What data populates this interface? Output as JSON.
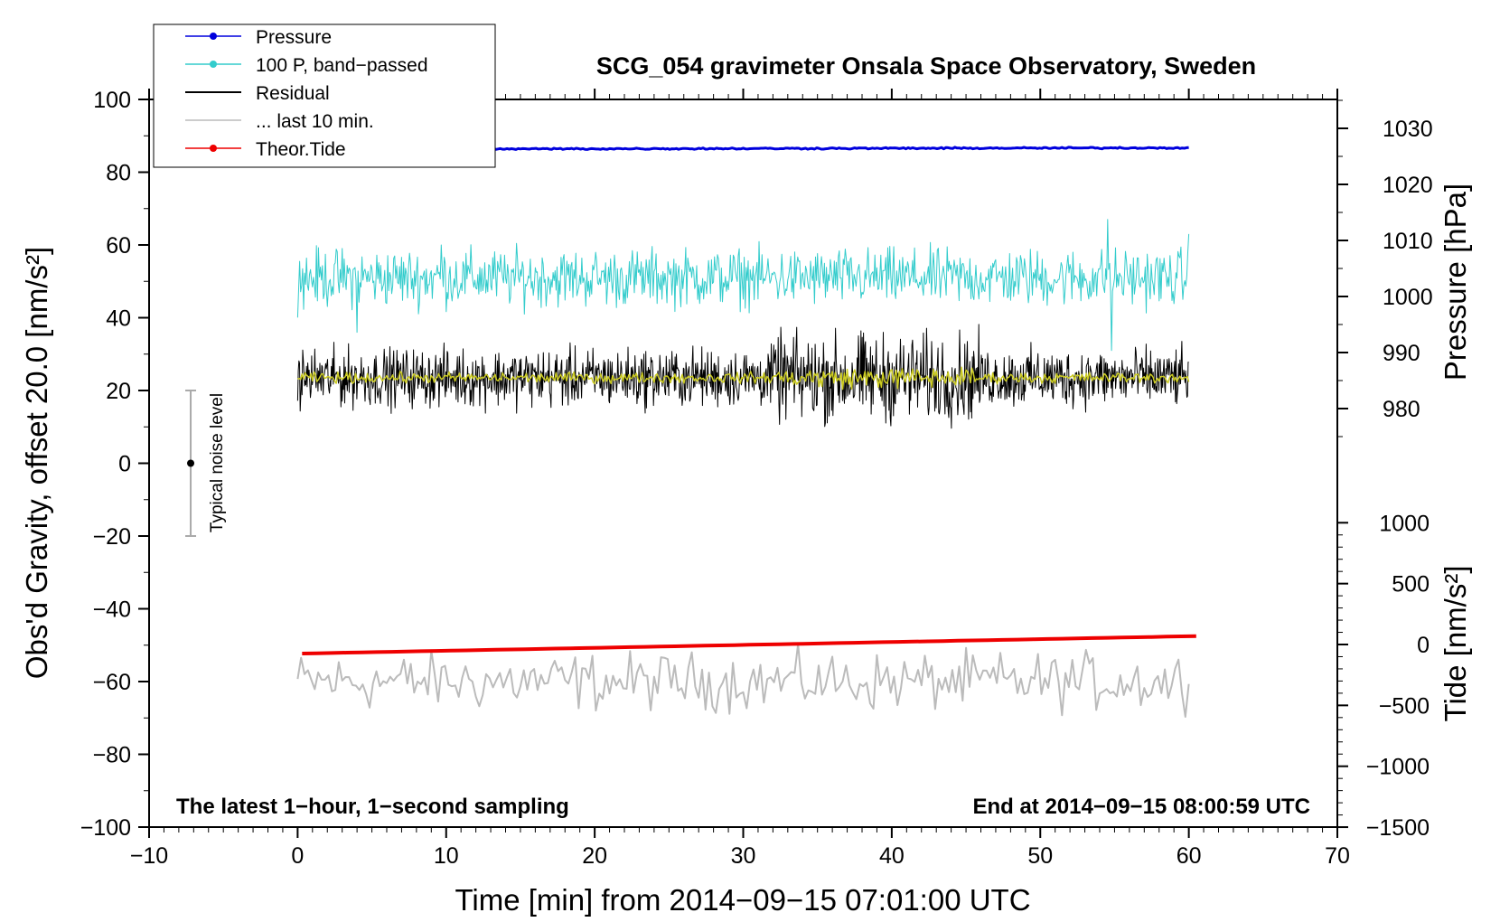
{
  "chart_data": {
    "type": "line",
    "title": "SCG_054 gravimeter Onsala Space Observatory, Sweden",
    "xlabel": "Time [min] from 2014−09−15 07:01:00 UTC",
    "ylabel": "Obs'd Gravity, offset 20.0 [nm/s²]",
    "ylabel_pressure": "Pressure [hPa]",
    "ylabel_tide": "Tide [nm/s²]",
    "xlim": [
      -10,
      70
    ],
    "ylim": [
      -100,
      100
    ],
    "xticks": [
      "−10",
      "0",
      "10",
      "20",
      "30",
      "40",
      "50",
      "60",
      "70"
    ],
    "yticks": [
      "−100",
      "−80",
      "−60",
      "−40",
      "−20",
      "0",
      "20",
      "40",
      "60",
      "80",
      "100"
    ],
    "pressure_ticks": [
      "980",
      "990",
      "1000",
      "1010",
      "1020",
      "1030"
    ],
    "tide_ticks": [
      "−1500",
      "−1000",
      "−500",
      "0",
      "500",
      "1000"
    ],
    "note_left": "The latest 1−hour, 1−second sampling",
    "note_right": "End at 2014−09−15 08:00:59 UTC",
    "noise_label": "Typical noise level",
    "noise_bar": {
      "center": 0,
      "low": -20,
      "high": 20,
      "x": -7.2
    },
    "legend": [
      {
        "name": "Pressure",
        "color": "#0000dd",
        "marker": true
      },
      {
        "name": "100 P, band−passed",
        "color": "#33cccc",
        "marker": true
      },
      {
        "name": "Residual",
        "color": "#000000",
        "marker": false
      },
      {
        "name": "... last 10 min.",
        "color": "#bbbbbb",
        "marker": false
      },
      {
        "name": "Theor.Tide",
        "color": "#ee0000",
        "marker": true
      }
    ],
    "series": [
      {
        "name": "Pressure",
        "color": "#0000dd",
        "x_range": [
          0,
          60
        ],
        "level": 86.3,
        "end": 86.7,
        "noise": 0.5
      },
      {
        "name": "100 P, band−passed",
        "color": "#33cccc",
        "x_range": [
          0,
          60
        ],
        "level": 51,
        "noise": 5.5
      },
      {
        "name": "Residual",
        "color": "#000000",
        "x_range": [
          0,
          60
        ],
        "level": 23.5,
        "noise": 5.5
      },
      {
        "name": "Residual (smoothed)",
        "color": "#cccc22",
        "x_range": [
          0,
          60
        ],
        "level": 23.5,
        "noise": 1
      },
      {
        "name": "... last 10 min.",
        "color": "#bbbbbb",
        "x_range": [
          0,
          60
        ],
        "level": -60,
        "noise": 5.5
      },
      {
        "name": "Theor.Tide",
        "color": "#ee0000",
        "x_range": [
          0.3,
          60.5
        ],
        "start": -52.3,
        "end": -47.5
      }
    ]
  }
}
